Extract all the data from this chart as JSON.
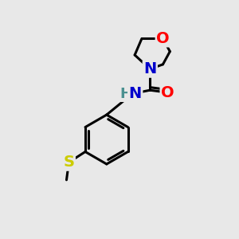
{
  "bg_color": "#e8e8e8",
  "bond_color": "#000000",
  "bond_width": 2.2,
  "atom_colors": {
    "O": "#ff0000",
    "N": "#0000cc",
    "S": "#cccc00",
    "H": "#4a9090",
    "C": "#000000"
  },
  "font_size": 14,
  "fig_size": [
    3.0,
    3.0
  ],
  "dpi": 100,
  "xlim": [
    0,
    10
  ],
  "ylim": [
    0,
    10
  ]
}
